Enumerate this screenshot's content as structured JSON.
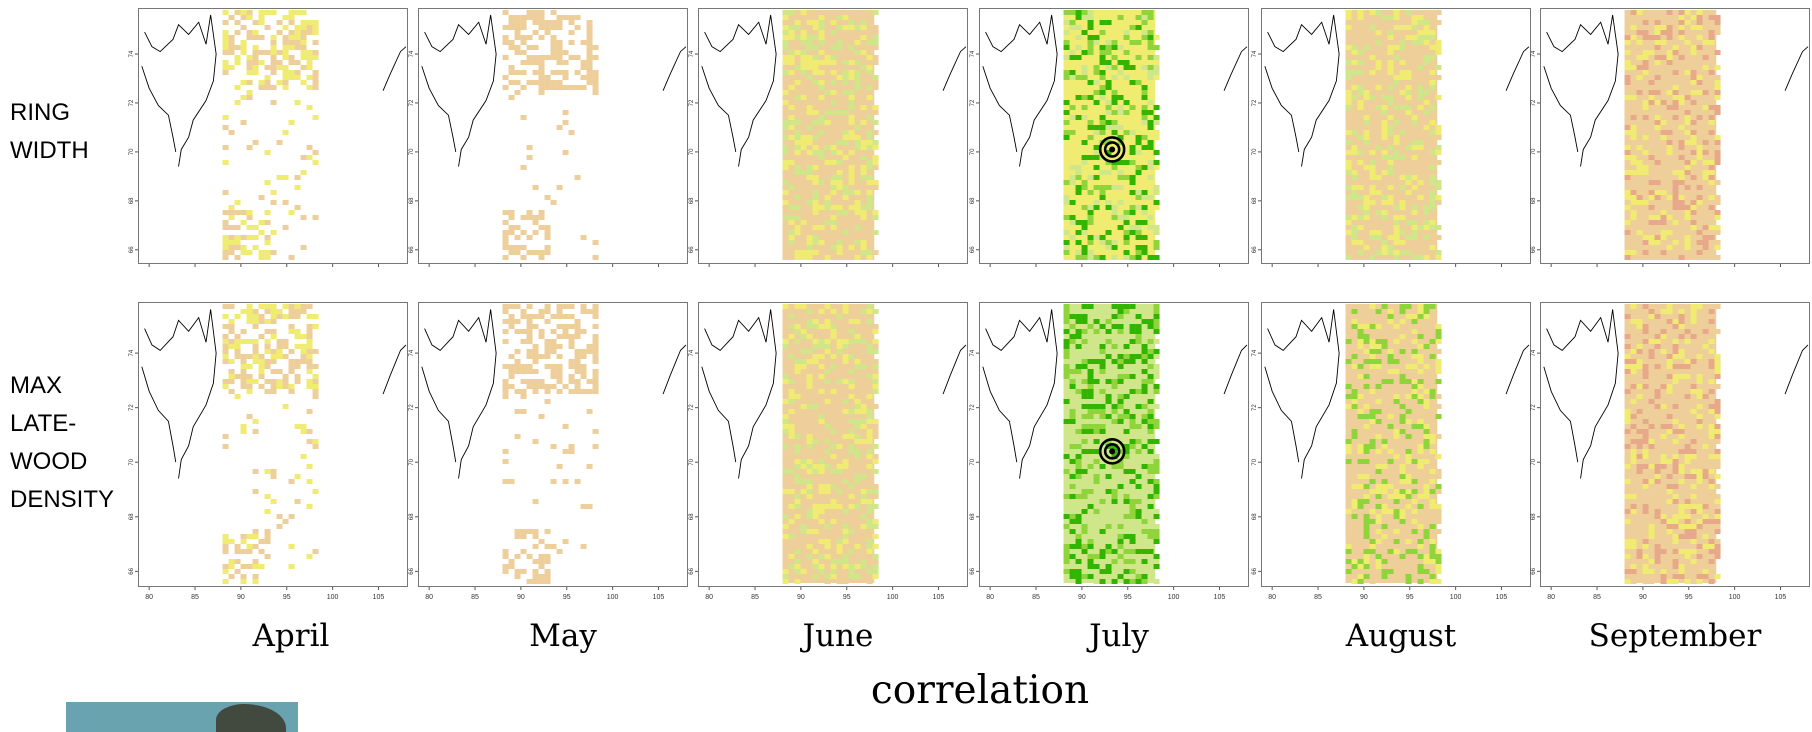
{
  "rows": [
    {
      "label_lines": [
        "RING",
        "WIDTH"
      ],
      "marker_lat": 70.1
    },
    {
      "label_lines": [
        "MAX",
        "LATE-",
        "WOOD",
        "DENSITY"
      ],
      "marker_lat": 70.4
    }
  ],
  "months": [
    "April",
    "May",
    "June",
    "July",
    "August",
    "September"
  ],
  "correlation_label": "correlation",
  "colors": {
    "strong_positive": "#33b400",
    "positive": "#8ed43a",
    "weak_positive": "#cfe68a",
    "near_zero": "#f0ec72",
    "weak_negative": "#eecf9a",
    "negative": "#e8a98b",
    "background": "#ffffff",
    "coast": "#000000"
  },
  "chart_data": [
    {
      "type": "heatmap",
      "panel_grid": {
        "rows": [
          "RING WIDTH",
          "MAX LATE-WOOD DENSITY"
        ],
        "columns": [
          "April",
          "May",
          "June",
          "July",
          "August",
          "September"
        ]
      },
      "x_axis": {
        "ticks": [
          80,
          85,
          90,
          95,
          100,
          105
        ],
        "range": [
          79,
          108
        ]
      },
      "y_axis": {
        "ticks": [
          66,
          68,
          70,
          72,
          74
        ],
        "range": [
          65.5,
          75.8
        ]
      },
      "data_band_longitude": [
        88,
        98
      ],
      "site_marker": {
        "lon": 93.3,
        "panels": [
          "July"
        ]
      },
      "dominant_class_by_panel": {
        "RING WIDTH": {
          "April": [
            "weak_negative",
            "near_zero",
            "sparse"
          ],
          "May": [
            "weak_negative",
            "sparse"
          ],
          "June": [
            "weak_negative",
            "near_zero",
            "weak_positive"
          ],
          "July": [
            "near_zero",
            "weak_positive",
            "positive",
            "strong_positive"
          ],
          "August": [
            "weak_negative",
            "near_zero",
            "weak_positive"
          ],
          "September": [
            "weak_negative",
            "negative",
            "near_zero"
          ]
        },
        "MAX LATE-WOOD DENSITY": {
          "April": [
            "near_zero",
            "weak_negative",
            "sparse"
          ],
          "May": [
            "weak_negative",
            "sparse"
          ],
          "June": [
            "weak_negative",
            "near_zero",
            "weak_positive"
          ],
          "July": [
            "weak_positive",
            "positive",
            "strong_positive"
          ],
          "August": [
            "weak_negative",
            "near_zero",
            "positive"
          ],
          "September": [
            "weak_negative",
            "negative",
            "near_zero"
          ]
        }
      }
    }
  ]
}
